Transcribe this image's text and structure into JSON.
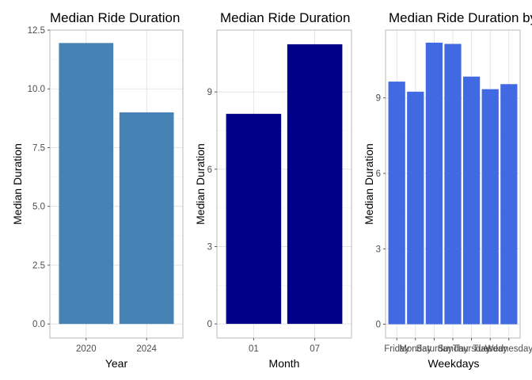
{
  "chart_data": [
    {
      "type": "bar",
      "title": "Median Ride Duration",
      "xlabel": "Year",
      "ylabel": "Median Duration",
      "categories": [
        "2020",
        "2024"
      ],
      "values": [
        11.95,
        9.0
      ],
      "ylim": [
        -0.6,
        12.5
      ],
      "yticks": [
        0,
        2.5,
        5,
        7.5,
        10,
        12.5
      ],
      "ytick_labels": [
        "0.0",
        "2.5",
        "5.0",
        "7.5",
        "10.0",
        "12.5"
      ],
      "bar_color": "#4682B4",
      "grid": true
    },
    {
      "type": "bar",
      "title": "Median Ride Duration",
      "xlabel": "Month",
      "ylabel": "Median Duration",
      "categories": [
        "01",
        "07"
      ],
      "values": [
        8.15,
        10.85
      ],
      "ylim": [
        -0.55,
        11.4
      ],
      "yticks": [
        0,
        3,
        6,
        9
      ],
      "ytick_labels": [
        "0",
        "3",
        "6",
        "9"
      ],
      "bar_color": "#00008B",
      "grid": true
    },
    {
      "type": "bar",
      "title": "Median Ride Duration by Weekday",
      "xlabel": "Weekdays",
      "ylabel": "Median Duration",
      "categories": [
        "Friday",
        "Monday",
        "Saturday",
        "Sunday",
        "Thursday",
        "Tuesday",
        "Wednesday"
      ],
      "values": [
        9.65,
        9.25,
        11.2,
        11.15,
        9.85,
        9.35,
        9.55
      ],
      "ylim": [
        -0.55,
        11.7
      ],
      "yticks": [
        0,
        3,
        6,
        9
      ],
      "ytick_labels": [
        "0",
        "3",
        "6",
        "9"
      ],
      "bar_color": "#4169E1",
      "grid": true
    }
  ]
}
